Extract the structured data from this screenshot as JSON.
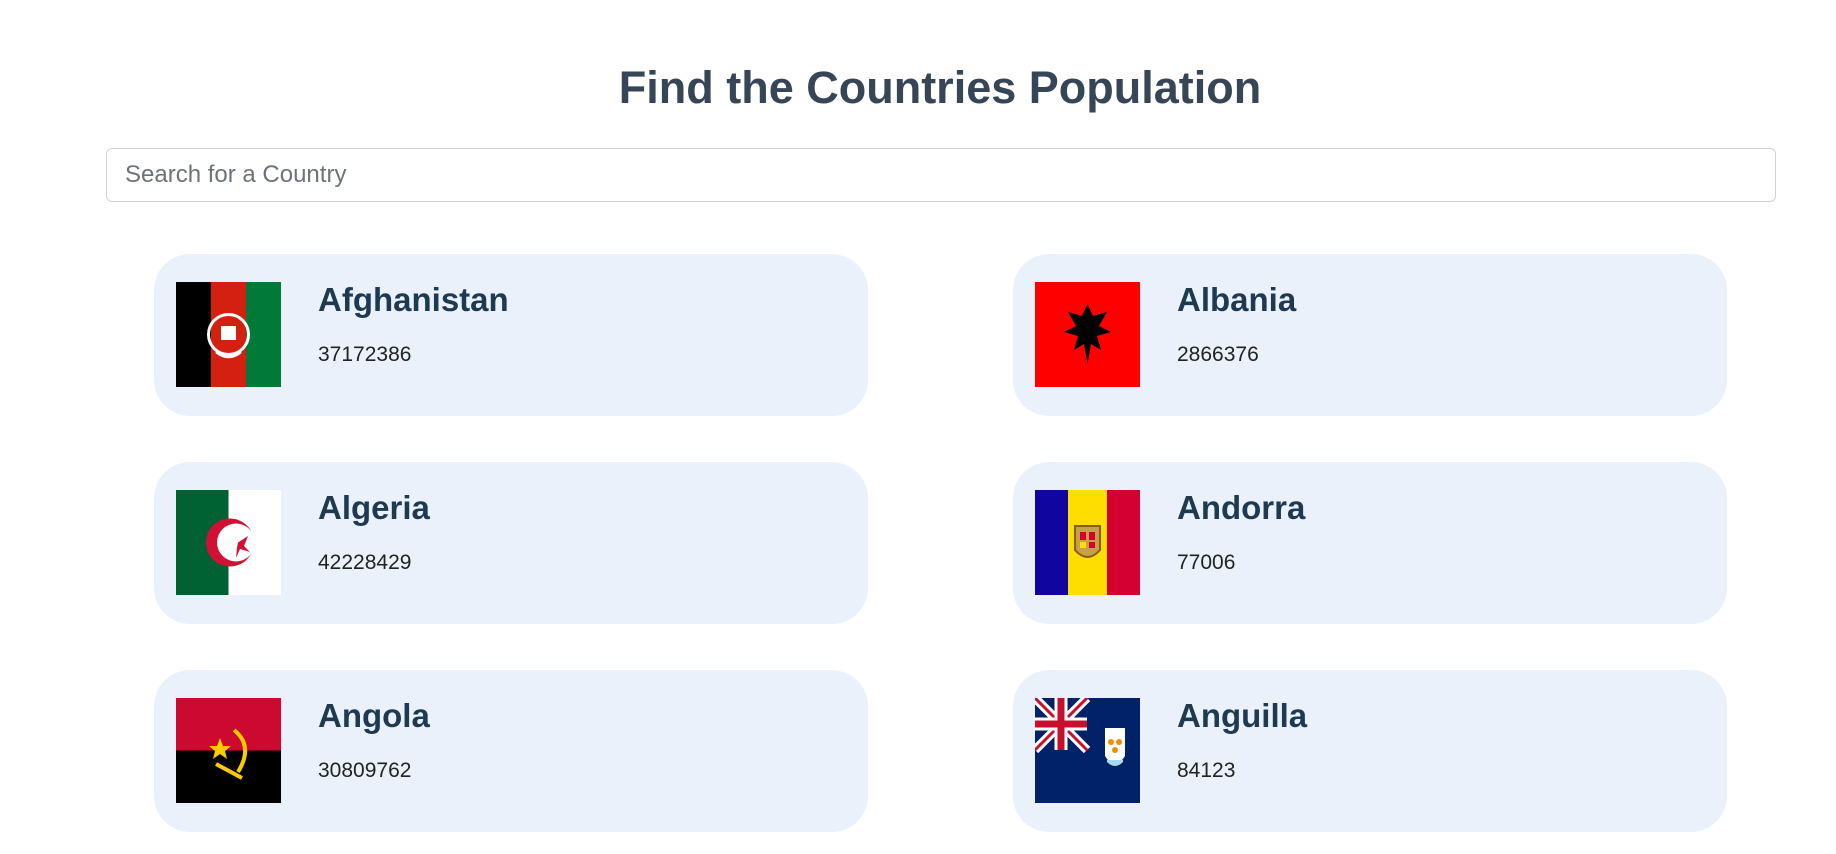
{
  "header": {
    "title": "Find the Countries Population"
  },
  "search": {
    "placeholder": "Search for a Country",
    "value": ""
  },
  "countries": [
    {
      "name": "Afghanistan",
      "population": "37172386",
      "flag_icon": "afghanistan-flag-icon"
    },
    {
      "name": "Albania",
      "population": "2866376",
      "flag_icon": "albania-flag-icon"
    },
    {
      "name": "Algeria",
      "population": "42228429",
      "flag_icon": "algeria-flag-icon"
    },
    {
      "name": "Andorra",
      "population": "77006",
      "flag_icon": "andorra-flag-icon"
    },
    {
      "name": "Angola",
      "population": "30809762",
      "flag_icon": "angola-flag-icon"
    },
    {
      "name": "Anguilla",
      "population": "84123",
      "flag_icon": "anguilla-flag-icon"
    }
  ],
  "colors": {
    "card_background": "#eaf1fb",
    "title_text": "#364656",
    "country_name_text": "#1d3a52"
  }
}
